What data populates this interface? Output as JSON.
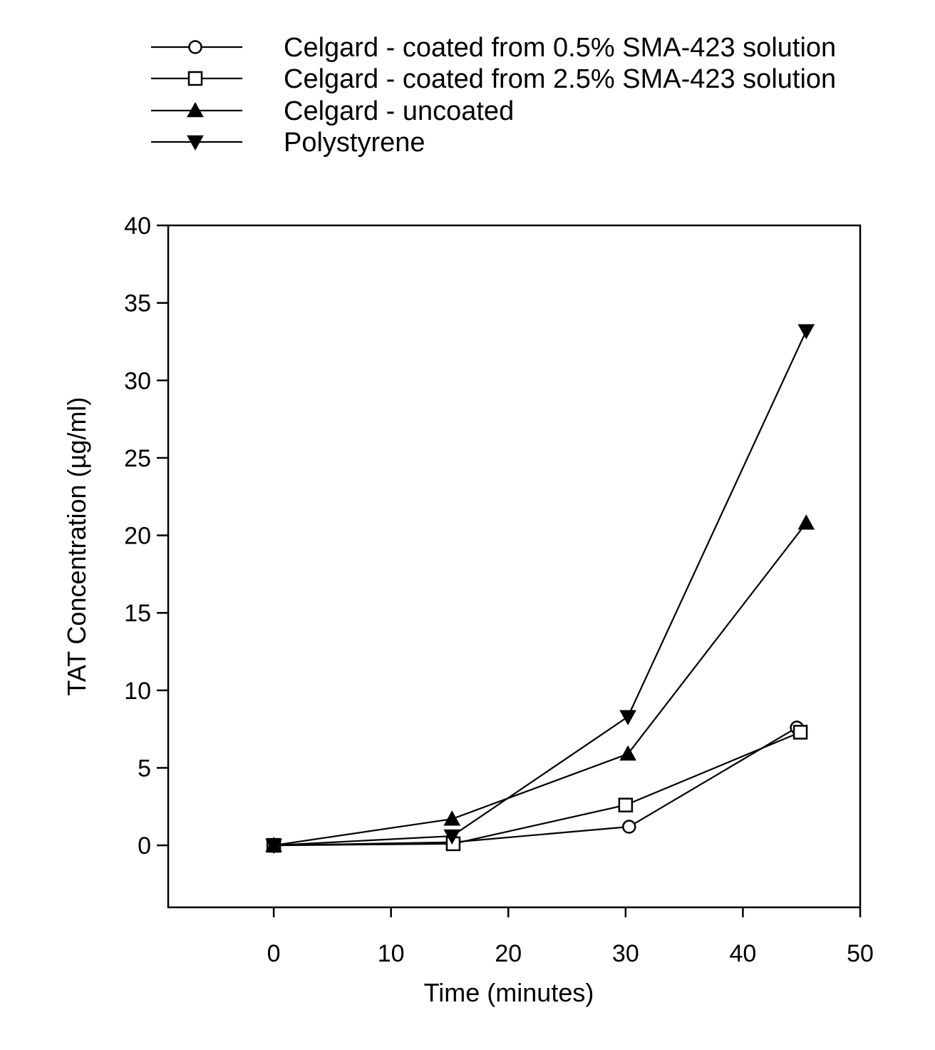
{
  "chart_data": {
    "type": "line",
    "title": "",
    "xlabel": "Time (minutes)",
    "ylabel": "TAT Concentration (µg/ml)",
    "xlim": [
      -9,
      50
    ],
    "ylim": [
      -4,
      40
    ],
    "xticks": [
      0,
      10,
      20,
      30,
      40,
      50
    ],
    "yticks": [
      0,
      5,
      10,
      15,
      20,
      25,
      30,
      35,
      40
    ],
    "grid": false,
    "legend_position": "top-left, above plot",
    "series": [
      {
        "name": "Celgard - coated from 0.5% SMA-423 solution",
        "marker": "circle-open",
        "x": [
          0,
          15.3,
          30.3,
          44.6
        ],
        "y": [
          0,
          0.2,
          1.2,
          7.6
        ]
      },
      {
        "name": "Celgard - coated from 2.5% SMA-423 solution",
        "marker": "square-open",
        "x": [
          0,
          15.3,
          30.0,
          44.9
        ],
        "y": [
          0,
          0.1,
          2.6,
          7.3
        ]
      },
      {
        "name": "Celgard - uncoated",
        "marker": "triangle-up-filled",
        "x": [
          0,
          15.2,
          30.2,
          45.4
        ],
        "y": [
          0,
          1.7,
          5.9,
          20.8
        ]
      },
      {
        "name": "Polystyrene",
        "marker": "triangle-down-filled",
        "x": [
          0,
          15.2,
          30.2,
          45.4
        ],
        "y": [
          0,
          0.6,
          8.3,
          33.2
        ]
      }
    ]
  }
}
